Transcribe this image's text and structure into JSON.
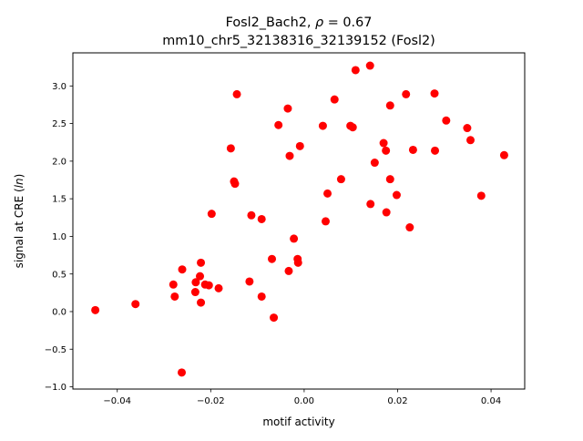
{
  "chart_data": {
    "type": "scatter",
    "title_line1": "Fosl2_Bach2, ",
    "title_rho_symbol": "ρ",
    "title_rho_value": " = 0.67",
    "title_line2": "mm10_chr5_32138316_32139152 (Fosl2)",
    "xlabel": "motif activity",
    "ylabel_prefix": "signal at CRE (",
    "ylabel_italic": "ln",
    "ylabel_suffix": ")",
    "xlim": [
      -0.0495,
      0.0472
    ],
    "ylim": [
      -1.03,
      3.44
    ],
    "x_ticks": [
      {
        "value": -0.04,
        "label": "−0.04"
      },
      {
        "value": -0.02,
        "label": "−0.02"
      },
      {
        "value": 0.0,
        "label": "0.00"
      },
      {
        "value": 0.02,
        "label": "0.02"
      },
      {
        "value": 0.04,
        "label": "0.04"
      }
    ],
    "y_ticks": [
      {
        "value": -1.0,
        "label": "−1.0"
      },
      {
        "value": -0.5,
        "label": "−0.5"
      },
      {
        "value": 0.0,
        "label": "0.0"
      },
      {
        "value": 0.5,
        "label": "0.5"
      },
      {
        "value": 1.0,
        "label": "1.0"
      },
      {
        "value": 1.5,
        "label": "1.5"
      },
      {
        "value": 2.0,
        "label": "2.0"
      },
      {
        "value": 2.5,
        "label": "2.5"
      },
      {
        "value": 3.0,
        "label": "3.0"
      }
    ],
    "grid": false,
    "marker_color": "#ff0000",
    "points": [
      {
        "x": -0.0447,
        "y": 0.02
      },
      {
        "x": -0.0361,
        "y": 0.1
      },
      {
        "x": -0.028,
        "y": 0.36
      },
      {
        "x": -0.0277,
        "y": 0.2
      },
      {
        "x": -0.0262,
        "y": -0.81
      },
      {
        "x": -0.0261,
        "y": 0.56
      },
      {
        "x": -0.0233,
        "y": 0.26
      },
      {
        "x": -0.0232,
        "y": 0.39
      },
      {
        "x": -0.0223,
        "y": 0.47
      },
      {
        "x": -0.0221,
        "y": 0.65
      },
      {
        "x": -0.0221,
        "y": 0.12
      },
      {
        "x": -0.0212,
        "y": 0.36
      },
      {
        "x": -0.0204,
        "y": 0.35
      },
      {
        "x": -0.0198,
        "y": 1.3
      },
      {
        "x": -0.0183,
        "y": 0.31
      },
      {
        "x": -0.0157,
        "y": 2.17
      },
      {
        "x": -0.015,
        "y": 1.73
      },
      {
        "x": -0.0148,
        "y": 1.7
      },
      {
        "x": -0.0144,
        "y": 2.89
      },
      {
        "x": -0.0117,
        "y": 0.4
      },
      {
        "x": -0.0113,
        "y": 1.28
      },
      {
        "x": -0.0091,
        "y": 1.23
      },
      {
        "x": -0.0091,
        "y": 0.2
      },
      {
        "x": -0.0069,
        "y": 0.7
      },
      {
        "x": -0.0065,
        "y": -0.08
      },
      {
        "x": -0.0055,
        "y": 2.48
      },
      {
        "x": -0.0035,
        "y": 2.7
      },
      {
        "x": -0.0033,
        "y": 0.54
      },
      {
        "x": -0.0031,
        "y": 2.07
      },
      {
        "x": -0.0022,
        "y": 0.97
      },
      {
        "x": -0.0014,
        "y": 0.7
      },
      {
        "x": -0.0013,
        "y": 0.65
      },
      {
        "x": -0.0009,
        "y": 2.2
      },
      {
        "x": 0.004,
        "y": 2.47
      },
      {
        "x": 0.0046,
        "y": 1.2
      },
      {
        "x": 0.005,
        "y": 1.57
      },
      {
        "x": 0.0065,
        "y": 2.82
      },
      {
        "x": 0.0079,
        "y": 1.76
      },
      {
        "x": 0.0099,
        "y": 2.47
      },
      {
        "x": 0.0104,
        "y": 2.45
      },
      {
        "x": 0.011,
        "y": 3.21
      },
      {
        "x": 0.0141,
        "y": 3.27
      },
      {
        "x": 0.0142,
        "y": 1.43
      },
      {
        "x": 0.0151,
        "y": 1.98
      },
      {
        "x": 0.017,
        "y": 2.24
      },
      {
        "x": 0.0175,
        "y": 2.14
      },
      {
        "x": 0.0176,
        "y": 1.32
      },
      {
        "x": 0.0184,
        "y": 2.74
      },
      {
        "x": 0.0184,
        "y": 1.76
      },
      {
        "x": 0.0198,
        "y": 1.55
      },
      {
        "x": 0.0218,
        "y": 2.89
      },
      {
        "x": 0.0226,
        "y": 1.12
      },
      {
        "x": 0.0233,
        "y": 2.15
      },
      {
        "x": 0.0279,
        "y": 2.9
      },
      {
        "x": 0.028,
        "y": 2.14
      },
      {
        "x": 0.0304,
        "y": 2.54
      },
      {
        "x": 0.0349,
        "y": 2.44
      },
      {
        "x": 0.0356,
        "y": 2.28
      },
      {
        "x": 0.0379,
        "y": 1.54
      },
      {
        "x": 0.0428,
        "y": 2.08
      }
    ]
  }
}
